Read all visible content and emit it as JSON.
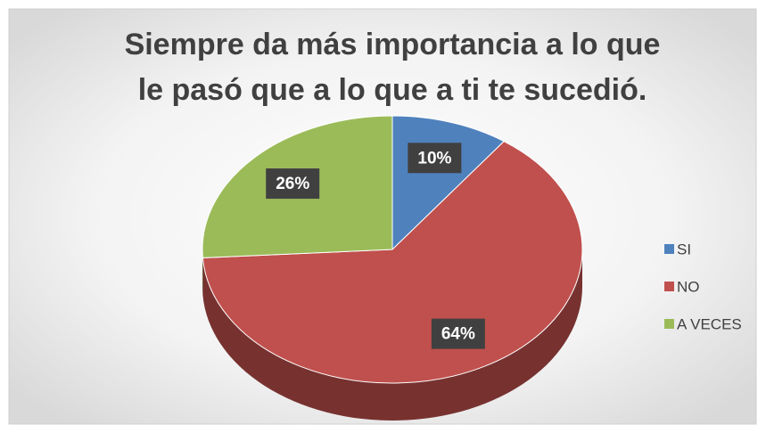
{
  "chart_data": {
    "type": "pie",
    "title": [
      "Siempre da más importancia a lo que",
      "le pasó que a lo que a ti te sucedió."
    ],
    "categories": [
      "SI",
      "NO",
      "A VECES"
    ],
    "values": [
      10,
      64,
      26
    ],
    "value_labels": [
      "10%",
      "64%",
      "26%"
    ],
    "colors": [
      "#4f81bd",
      "#c0504d",
      "#9bbb59"
    ],
    "legend": "right"
  }
}
